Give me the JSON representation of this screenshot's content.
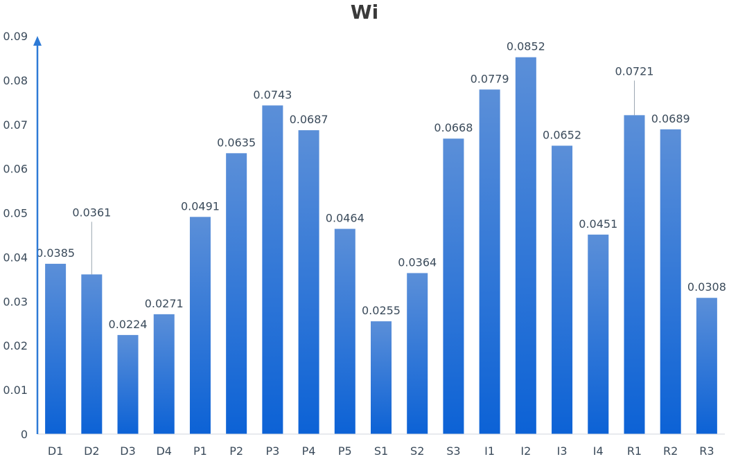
{
  "chart_data": {
    "type": "bar",
    "title": "Wi",
    "xlabel": "",
    "ylabel": "",
    "categories": [
      "D1",
      "D2",
      "D3",
      "D4",
      "P1",
      "P2",
      "P3",
      "P4",
      "P5",
      "S1",
      "S2",
      "S3",
      "I1",
      "I2",
      "I3",
      "I4",
      "R1",
      "R2",
      "R3"
    ],
    "values": [
      0.0385,
      0.0361,
      0.0224,
      0.0271,
      0.0491,
      0.0635,
      0.0743,
      0.0687,
      0.0464,
      0.0255,
      0.0364,
      0.0668,
      0.0779,
      0.0852,
      0.0652,
      0.0451,
      0.0721,
      0.0689,
      0.0308
    ],
    "data_labels": [
      "0.0385",
      "0.0361",
      "0.0224",
      "0.0271",
      "0.0491",
      "0.0635",
      "0.0743",
      "0.0687",
      "0.0464",
      "0.0255",
      "0.0364",
      "0.0668",
      "0.0779",
      "0.0852",
      "0.0652",
      "0.0451",
      "0.0721",
      "0.0689",
      "0.0308"
    ],
    "ylim": [
      0,
      0.09
    ],
    "yticks": [
      "0",
      "0.01",
      "0.02",
      "0.03",
      "0.04",
      "0.05",
      "0.06",
      "0.07",
      "0.08",
      "0.09"
    ],
    "grid": false,
    "legend": "none",
    "colors": {
      "bar_top": "#5b8fd8",
      "bar_bottom": "#0c62d6",
      "axis": "#2d7ad6",
      "text": "#3a4a5a",
      "title": "#3a3a3a",
      "leader": "#9aa5b0"
    }
  }
}
